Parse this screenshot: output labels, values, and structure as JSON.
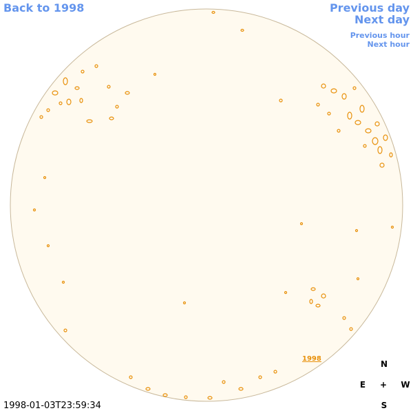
{
  "navigation": {
    "back": "Back to 1998",
    "previous_day": "Previous day",
    "next_day": "Next day",
    "previous_hour": "Previous hour",
    "next_hour": "Next hour"
  },
  "timestamp": "1998-01-03T23:59:34",
  "label": "1998",
  "compass": {
    "north": "N",
    "east": "E",
    "center": "+",
    "west": "W",
    "south": "S"
  }
}
